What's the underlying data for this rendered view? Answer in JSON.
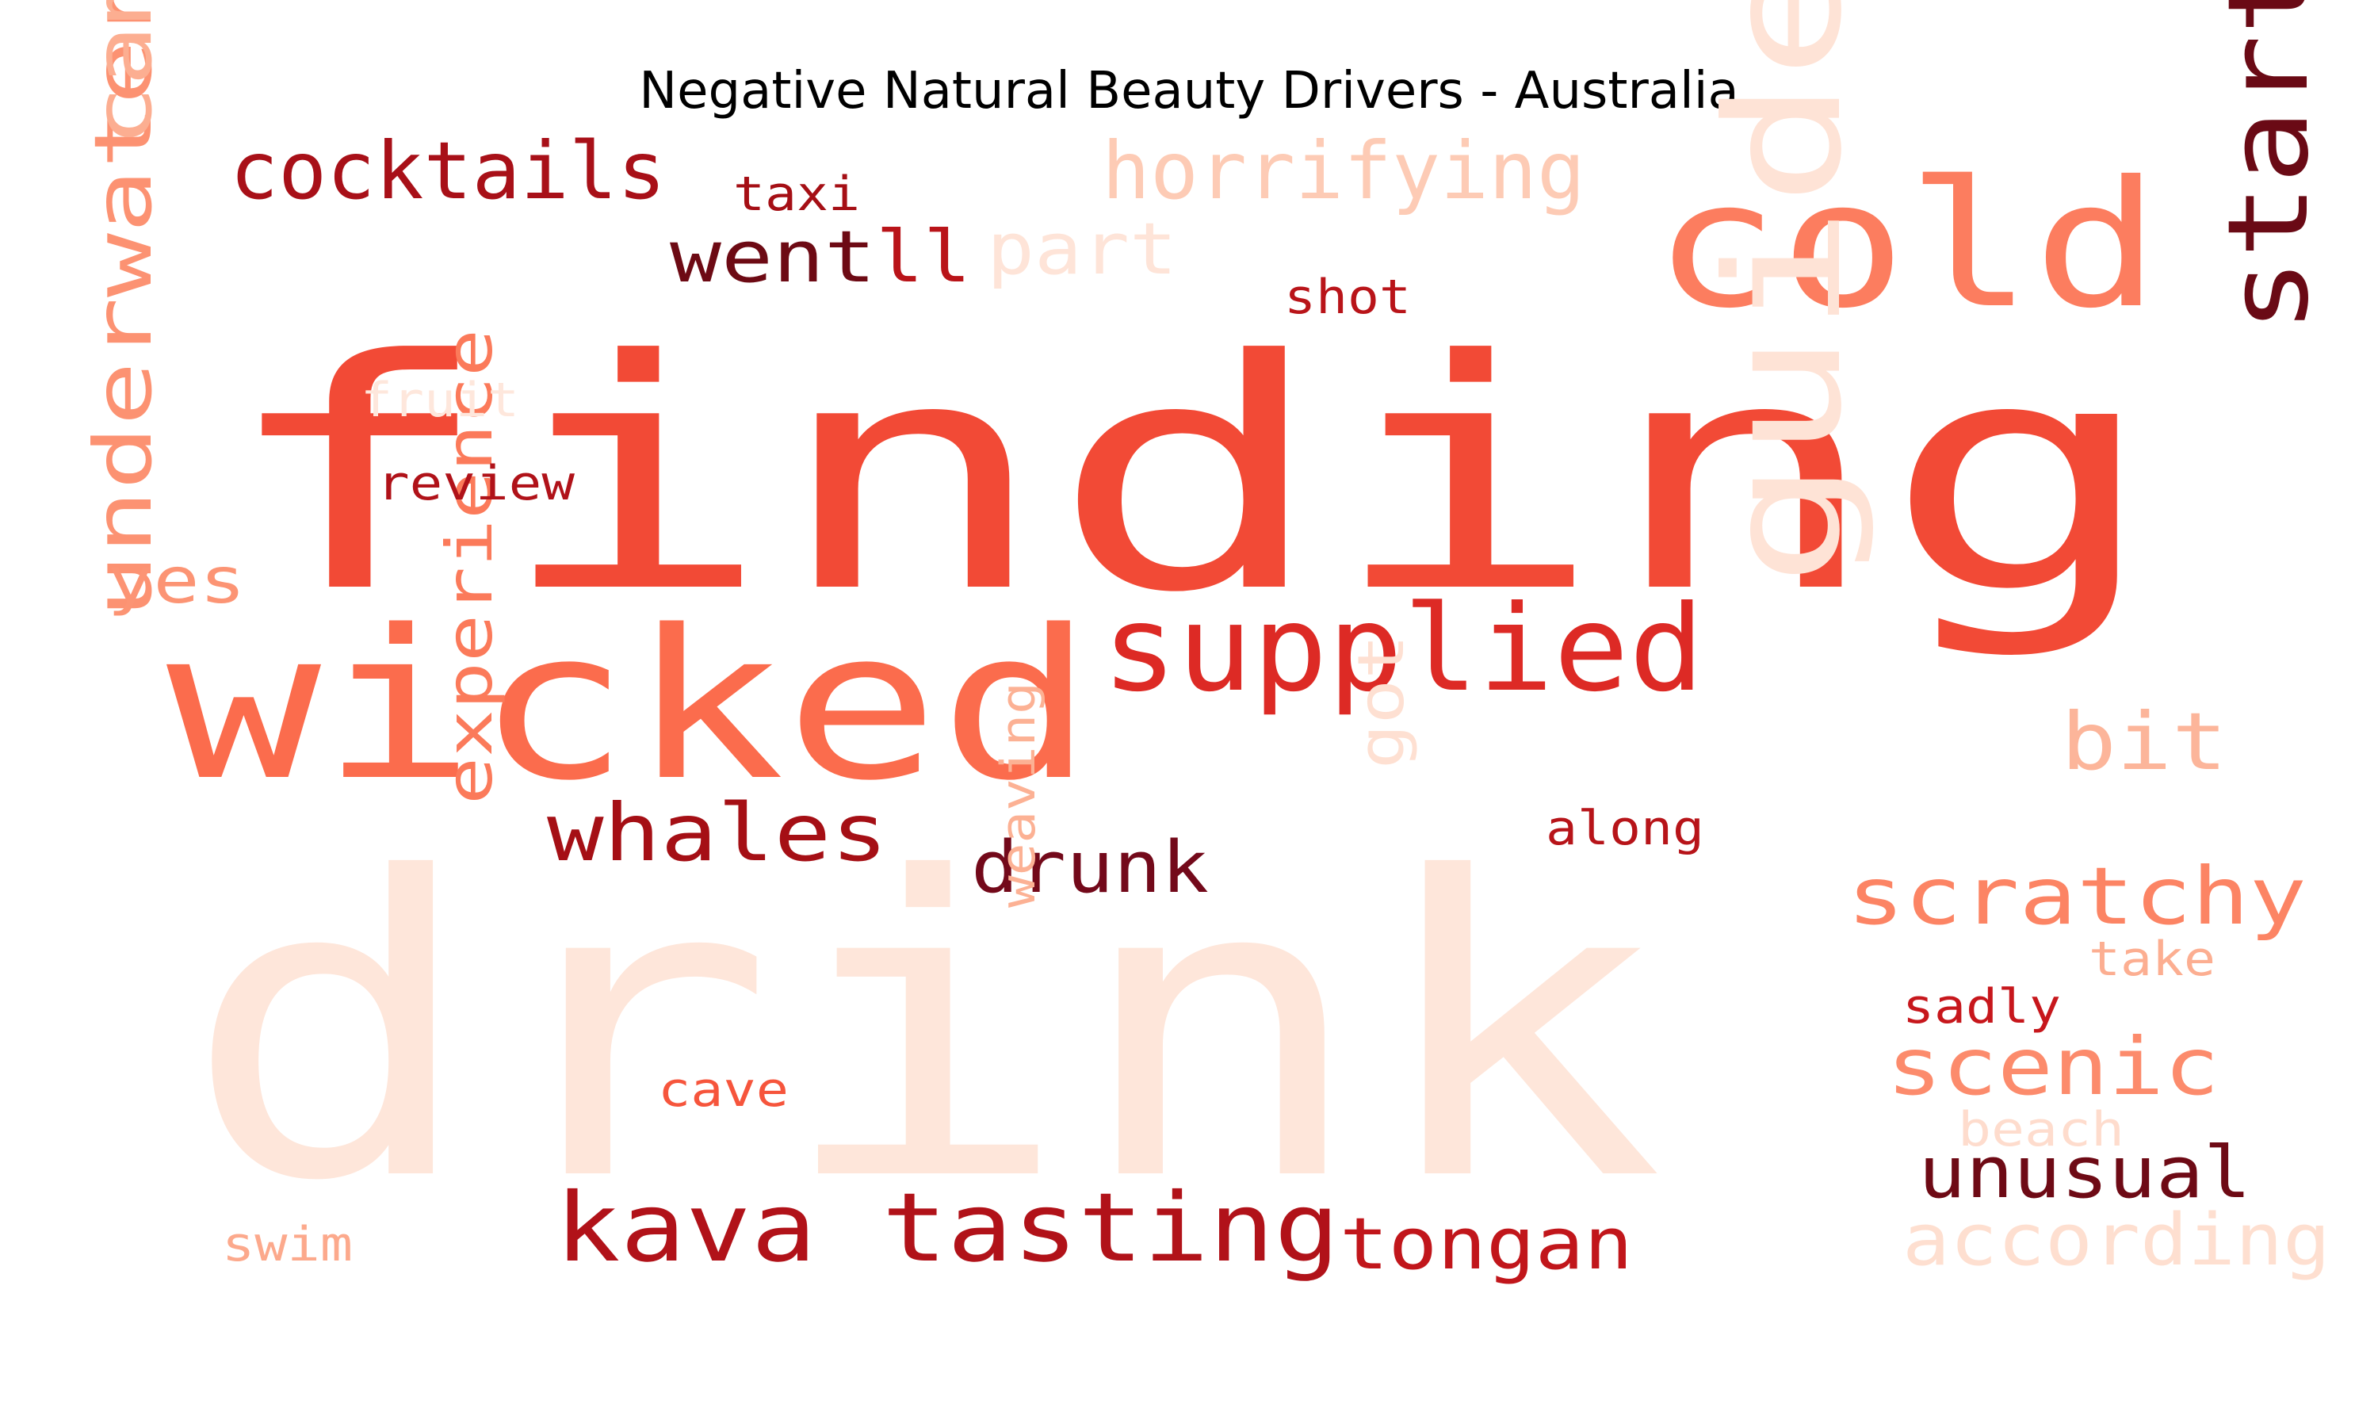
{
  "title": "Negative Natural Beauty Drivers - Australia",
  "words": [
    {
      "text": "drink",
      "color": "#fee6da"
    },
    {
      "text": "finding",
      "color": "#f24a36"
    },
    {
      "text": "wicked",
      "color": "#fb6c4d"
    },
    {
      "text": "cold",
      "color": "#fc7d5f"
    },
    {
      "text": "guide",
      "color": "#fee3d6"
    },
    {
      "text": "supplied",
      "color": "#dd2a25"
    },
    {
      "text": "start",
      "color": "#6a0a15"
    },
    {
      "text": "underwater",
      "color": "#fc9272"
    },
    {
      "text": "camera",
      "color": "#fcae91"
    },
    {
      "text": "cocktails",
      "color": "#a81018"
    },
    {
      "text": "horrifying",
      "color": "#fdcbb5"
    },
    {
      "text": "kava tasting",
      "color": "#b11219"
    },
    {
      "text": "whales",
      "color": "#a50f15"
    },
    {
      "text": "scratchy",
      "color": "#fc8464"
    },
    {
      "text": "scenic",
      "color": "#fc8b6c"
    },
    {
      "text": "unusual",
      "color": "#6e0a15"
    },
    {
      "text": "tongan",
      "color": "#c1161b"
    },
    {
      "text": "according",
      "color": "#fedfd0"
    },
    {
      "text": "experience",
      "color": "#fb7a5a"
    },
    {
      "text": "drunk",
      "color": "#73091a"
    },
    {
      "text": "went",
      "color": "#6d0a14"
    },
    {
      "text": "ll",
      "color": "#b91419"
    },
    {
      "text": "part",
      "color": "#fee4d8"
    },
    {
      "text": "bit",
      "color": "#fcb59a"
    },
    {
      "text": "got",
      "color": "#fee0d2"
    },
    {
      "text": "yes",
      "color": "#fc9474"
    },
    {
      "text": "taxi",
      "color": "#a50f15"
    },
    {
      "text": "shot",
      "color": "#b91419"
    },
    {
      "text": "fruit",
      "color": "#fee7dc"
    },
    {
      "text": "review",
      "color": "#b01219"
    },
    {
      "text": "along",
      "color": "#b71419"
    },
    {
      "text": "weaving",
      "color": "#fcb194"
    },
    {
      "text": "cave",
      "color": "#f6553c"
    },
    {
      "text": "swim",
      "color": "#fca98c"
    },
    {
      "text": "take",
      "color": "#fcae91"
    },
    {
      "text": "sadly",
      "color": "#c7171c"
    },
    {
      "text": "beach",
      "color": "#fedccd"
    }
  ]
}
